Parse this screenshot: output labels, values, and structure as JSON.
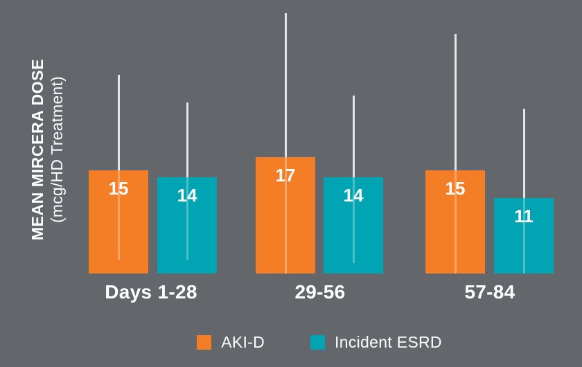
{
  "chart_data": {
    "type": "bar",
    "title": "",
    "ylabel": "MEAN MIRCERA DOSE (mcg/HD Treatment)",
    "ylabel_lines": [
      "MEAN MIRCERA DOSE",
      "(mcg/HD Treatment)"
    ],
    "xlabel": "",
    "categories": [
      "Days 1-28",
      "29-56",
      "57-84"
    ],
    "series": [
      {
        "name": "AKI-D",
        "color": "#F47E25",
        "values": [
          15,
          17,
          15
        ],
        "error_high": [
          29,
          38,
          35
        ],
        "error_low": [
          2,
          0,
          0
        ]
      },
      {
        "name": "Incident ESRD",
        "color": "#00A4B2",
        "values": [
          14,
          14,
          11
        ],
        "error_high": [
          25,
          26,
          24
        ],
        "error_low": [
          2,
          1.5,
          0
        ]
      }
    ],
    "ylim": [
      0,
      40
    ],
    "grid": false,
    "axis_lines": false,
    "legend_position": "bottom",
    "background_color": "#63666A",
    "text_color": "#FFFFFF",
    "error_bar_color": "#E4E5E6"
  }
}
